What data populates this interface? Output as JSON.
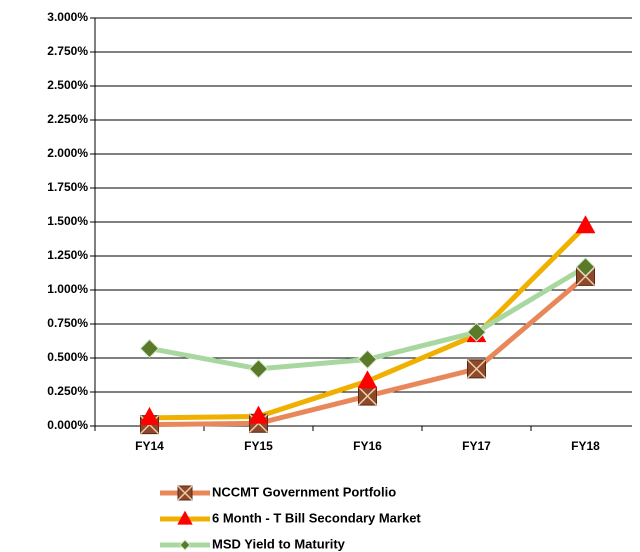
{
  "chart_data": {
    "type": "line",
    "categories": [
      "FY14",
      "FY15",
      "FY16",
      "FY17",
      "FY18"
    ],
    "series": [
      {
        "name": "NCCMT Government Portfolio",
        "color": "#e8875a",
        "marker_color": "#8b4a2b",
        "marker": "square-x",
        "values": [
          0.01,
          0.02,
          0.22,
          0.42,
          1.1
        ]
      },
      {
        "name": "6 Month - T Bill Secondary Market",
        "color": "#f0b000",
        "marker_color": "#ff0000",
        "marker": "triangle",
        "values": [
          0.06,
          0.07,
          0.33,
          0.67,
          1.47
        ]
      },
      {
        "name": "MSD Yield to Maturity",
        "color": "#a8d8a0",
        "marker_color": "#5a7a2a",
        "marker": "diamond",
        "values": [
          0.57,
          0.42,
          0.49,
          0.69,
          1.17
        ]
      }
    ],
    "ylim": [
      0,
      3
    ],
    "yticks": [
      {
        "value": 0,
        "label": "0.000%"
      },
      {
        "value": 0.25,
        "label": "0.250%"
      },
      {
        "value": 0.5,
        "label": "0.500%"
      },
      {
        "value": 0.75,
        "label": "0.750%"
      },
      {
        "value": 1,
        "label": "1.000%"
      },
      {
        "value": 1.25,
        "label": "1.250%"
      },
      {
        "value": 1.5,
        "label": "1.500%"
      },
      {
        "value": 1.75,
        "label": "1.750%"
      },
      {
        "value": 2,
        "label": "2.000%"
      },
      {
        "value": 2.25,
        "label": "2.250%"
      },
      {
        "value": 2.5,
        "label": "2.500%"
      },
      {
        "value": 2.75,
        "label": "2.750%"
      },
      {
        "value": 3,
        "label": "3.000%"
      }
    ],
    "grid": true,
    "legend": "bottom"
  }
}
